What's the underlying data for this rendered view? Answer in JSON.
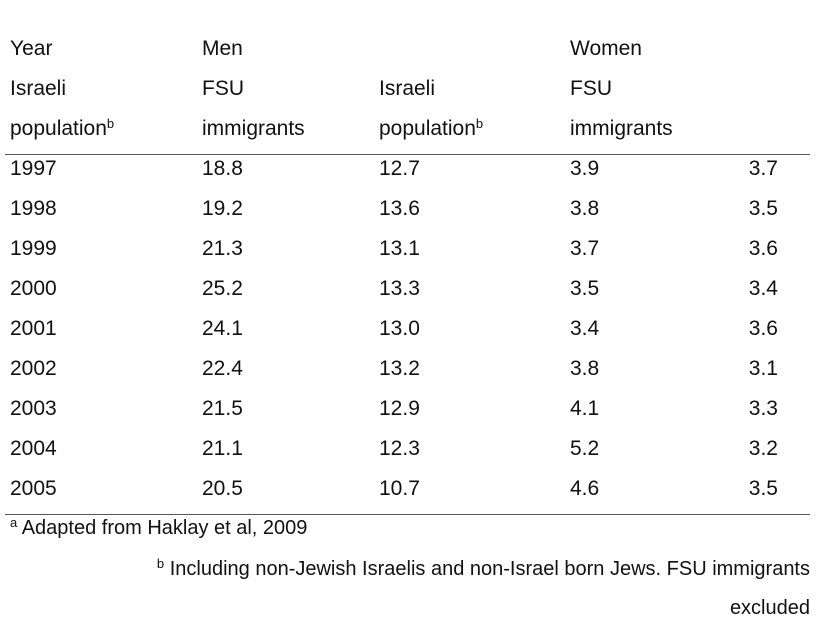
{
  "table": {
    "header": {
      "row1": {
        "year": "Year",
        "men": "Men",
        "women": "Women"
      },
      "row2": {
        "col0": "Israeli",
        "col1": "FSU",
        "col2": "Israeli",
        "col3": "FSU"
      },
      "row3": {
        "col0": "population",
        "col0_sup": "b",
        "col1": "immigrants",
        "col2": "population",
        "col2_sup": "b",
        "col3": "immigrants"
      }
    },
    "rows": [
      [
        "1997",
        "18.8",
        "12.7",
        "3.9",
        "3.7"
      ],
      [
        "1998",
        "19.2",
        "13.6",
        "3.8",
        "3.5"
      ],
      [
        "1999",
        "21.3",
        "13.1",
        "3.7",
        "3.6"
      ],
      [
        "2000",
        "25.2",
        "13.3",
        "3.5",
        "3.4"
      ],
      [
        "2001",
        "24.1",
        "13.0",
        "3.4",
        "3.6"
      ],
      [
        "2002",
        "22.4",
        "13.2",
        "3.8",
        "3.1"
      ],
      [
        "2003",
        "21.5",
        "12.9",
        "4.1",
        "3.3"
      ],
      [
        "2004",
        "21.1",
        "12.3",
        "5.2",
        "3.2"
      ],
      [
        "2005",
        "20.5",
        "10.7",
        "4.6",
        "3.5"
      ]
    ]
  },
  "footnotes": {
    "a_mark": "a",
    "a_text": "Adapted from Haklay et al, 2009",
    "b_mark": "b",
    "b_text_line1": "Including non-Jewish Israelis and non-Israel born Jews. FSU immigrants",
    "b_text_line2": "excluded"
  }
}
